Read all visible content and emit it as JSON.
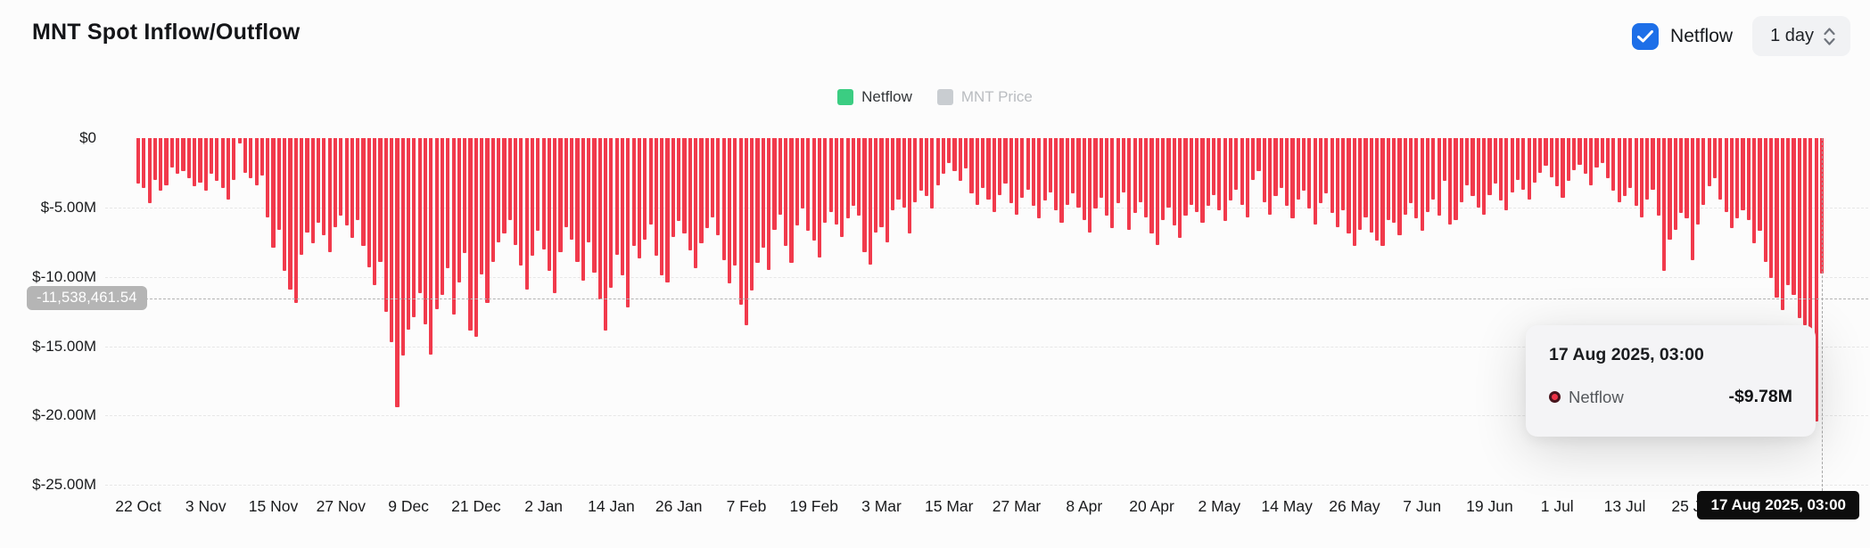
{
  "header": {
    "title": "MNT Spot Inflow/Outflow",
    "netflow_toggle": {
      "label": "Netflow",
      "checked": true,
      "color": "#1d6fe8"
    },
    "interval_select": {
      "value": "1 day"
    }
  },
  "legend": [
    {
      "label": "Netflow",
      "color": "#3bcd82",
      "active": true
    },
    {
      "label": "MNT Price",
      "color": "#c9cdd1",
      "active": false
    }
  ],
  "crosshair": {
    "y_badge_label": "-11,538,461.54",
    "y_value_millions": -11.538461,
    "x_badge_label": "17 Aug 2025, 03:00"
  },
  "tooltip": {
    "title": "17 Aug 2025, 03:00",
    "series": "Netflow",
    "value": "-$9.78M",
    "marker_color": "#ef3347"
  },
  "chart_data": {
    "type": "bar",
    "title": "MNT Spot Inflow/Outflow",
    "bar_color": "#f13a4c",
    "grid": "dashed-horizontal",
    "y_axis": {
      "tick_labels": [
        "$0",
        "$-5.00M",
        "$-10.00M",
        "$-15.00M",
        "$-20.00M",
        "$-25.00M"
      ],
      "tick_values_millions": [
        0,
        -5,
        -10,
        -15,
        -20,
        -25
      ],
      "ylim_millions": [
        -25,
        0
      ]
    },
    "x_axis": {
      "tick_labels": [
        "22 Oct",
        "3 Nov",
        "15 Nov",
        "27 Nov",
        "9 Dec",
        "21 Dec",
        "2 Jan",
        "14 Jan",
        "26 Jan",
        "7 Feb",
        "19 Feb",
        "3 Mar",
        "15 Mar",
        "27 Mar",
        "8 Apr",
        "20 Apr",
        "2 May",
        "14 May",
        "26 May",
        "7 Jun",
        "19 Jun",
        "1 Jul",
        "13 Jul",
        "25 Jul"
      ],
      "tick_every_n_bars": 12,
      "range": "22 Oct 2024 – 17 Aug 2025 (daily)"
    },
    "series_name": "Netflow",
    "values_millions_usd": [
      -3.3,
      -3.6,
      -4.7,
      -3.0,
      -3.8,
      -3.4,
      -2.1,
      -2.6,
      -2.4,
      -2.9,
      -3.5,
      -3.2,
      -3.8,
      -2.6,
      -3.1,
      -3.6,
      -4.4,
      -3.0,
      -0.4,
      -2.5,
      -2.9,
      -3.4,
      -2.7,
      -5.7,
      -7.9,
      -6.6,
      -9.6,
      -10.9,
      -11.9,
      -8.4,
      -6.8,
      -7.6,
      -6.1,
      -7.0,
      -8.2,
      -6.4,
      -5.6,
      -6.3,
      -7.2,
      -5.9,
      -7.8,
      -9.3,
      -10.6,
      -8.9,
      -12.5,
      -14.7,
      -19.4,
      -15.7,
      -13.8,
      -12.9,
      -11.2,
      -13.4,
      -15.6,
      -12.3,
      -11.3,
      -9.4,
      -12.7,
      -10.4,
      -8.3,
      -13.9,
      -14.3,
      -9.8,
      -11.9,
      -8.9,
      -7.5,
      -6.9,
      -5.9,
      -7.7,
      -9.2,
      -10.9,
      -8.5,
      -6.7,
      -8.0,
      -9.6,
      -11.2,
      -8.2,
      -6.4,
      -7.3,
      -8.9,
      -10.3,
      -7.5,
      -9.7,
      -11.6,
      -13.9,
      -10.8,
      -8.4,
      -9.9,
      -12.2,
      -7.8,
      -8.7,
      -7.3,
      -6.2,
      -8.5,
      -9.9,
      -10.4,
      -7.1,
      -6.0,
      -6.9,
      -8.1,
      -9.4,
      -7.6,
      -6.5,
      -5.7,
      -7.0,
      -8.8,
      -10.5,
      -9.2,
      -12.0,
      -13.5,
      -11.0,
      -9.0,
      -7.9,
      -9.5,
      -6.6,
      -5.5,
      -7.8,
      -9.0,
      -6.3,
      -5.1,
      -6.7,
      -7.4,
      -8.6,
      -6.1,
      -5.3,
      -6.2,
      -7.1,
      -5.8,
      -4.9,
      -5.6,
      -8.2,
      -9.1,
      -6.8,
      -6.4,
      -7.5,
      -5.2,
      -4.4,
      -5.0,
      -6.9,
      -4.6,
      -3.8,
      -4.2,
      -5.1,
      -3.4,
      -2.6,
      -1.8,
      -2.4,
      -3.1,
      -2.2,
      -4.0,
      -4.8,
      -3.6,
      -4.4,
      -5.3,
      -4.1,
      -3.3,
      -4.7,
      -5.5,
      -4.3,
      -3.7,
      -4.9,
      -5.8,
      -4.5,
      -3.9,
      -5.2,
      -6.1,
      -4.8,
      -4.0,
      -5.0,
      -5.9,
      -6.8,
      -5.1,
      -4.3,
      -5.6,
      -6.5,
      -4.7,
      -3.9,
      -6.6,
      -5.4,
      -4.6,
      -5.7,
      -6.9,
      -7.7,
      -5.9,
      -5.0,
      -6.3,
      -7.2,
      -5.6,
      -4.8,
      -5.3,
      -6.1,
      -4.9,
      -4.1,
      -5.2,
      -6.0,
      -4.5,
      -3.7,
      -4.8,
      -5.7,
      -3.0,
      -2.4,
      -4.6,
      -5.5,
      -4.2,
      -3.6,
      -4.9,
      -5.8,
      -4.4,
      -3.8,
      -5.1,
      -6.2,
      -4.7,
      -4.0,
      -5.4,
      -6.4,
      -5.2,
      -6.9,
      -7.8,
      -6.6,
      -5.7,
      -6.8,
      -7.4,
      -7.8,
      -5.9,
      -6.1,
      -7.0,
      -5.5,
      -4.7,
      -5.8,
      -6.7,
      -5.3,
      -4.4,
      -5.6,
      -3.1,
      -6.2,
      -5.9,
      -4.6,
      -3.4,
      -4.2,
      -5.0,
      -5.5,
      -4.1,
      -3.3,
      -4.5,
      -5.2,
      -3.9,
      -3.0,
      -3.7,
      -4.4,
      -3.2,
      -2.5,
      -2.0,
      -2.8,
      -3.5,
      -4.3,
      -3.1,
      -2.3,
      -1.9,
      -2.6,
      -3.4,
      -2.1,
      -1.8,
      -2.9,
      -3.8,
      -4.6,
      -4.2,
      -3.6,
      -4.9,
      -5.7,
      -4.4,
      -3.7,
      -5.6,
      -9.6,
      -7.3,
      -6.6,
      -5.4,
      -5.8,
      -8.8,
      -6.2,
      -4.8,
      -3.5,
      -2.9,
      -4.4,
      -5.3,
      -6.5,
      -5.8,
      -5.2,
      -5.9,
      -7.6,
      -6.7,
      -8.9,
      -10.1,
      -11.5,
      -12.4,
      -10.6,
      -11.3,
      -13.0,
      -13.5,
      -19.8,
      -20.4,
      -9.78
    ],
    "hovered_point": {
      "date": "17 Aug 2025, 03:00",
      "value_millions_usd": -9.78
    },
    "legend_position": "top-center"
  }
}
